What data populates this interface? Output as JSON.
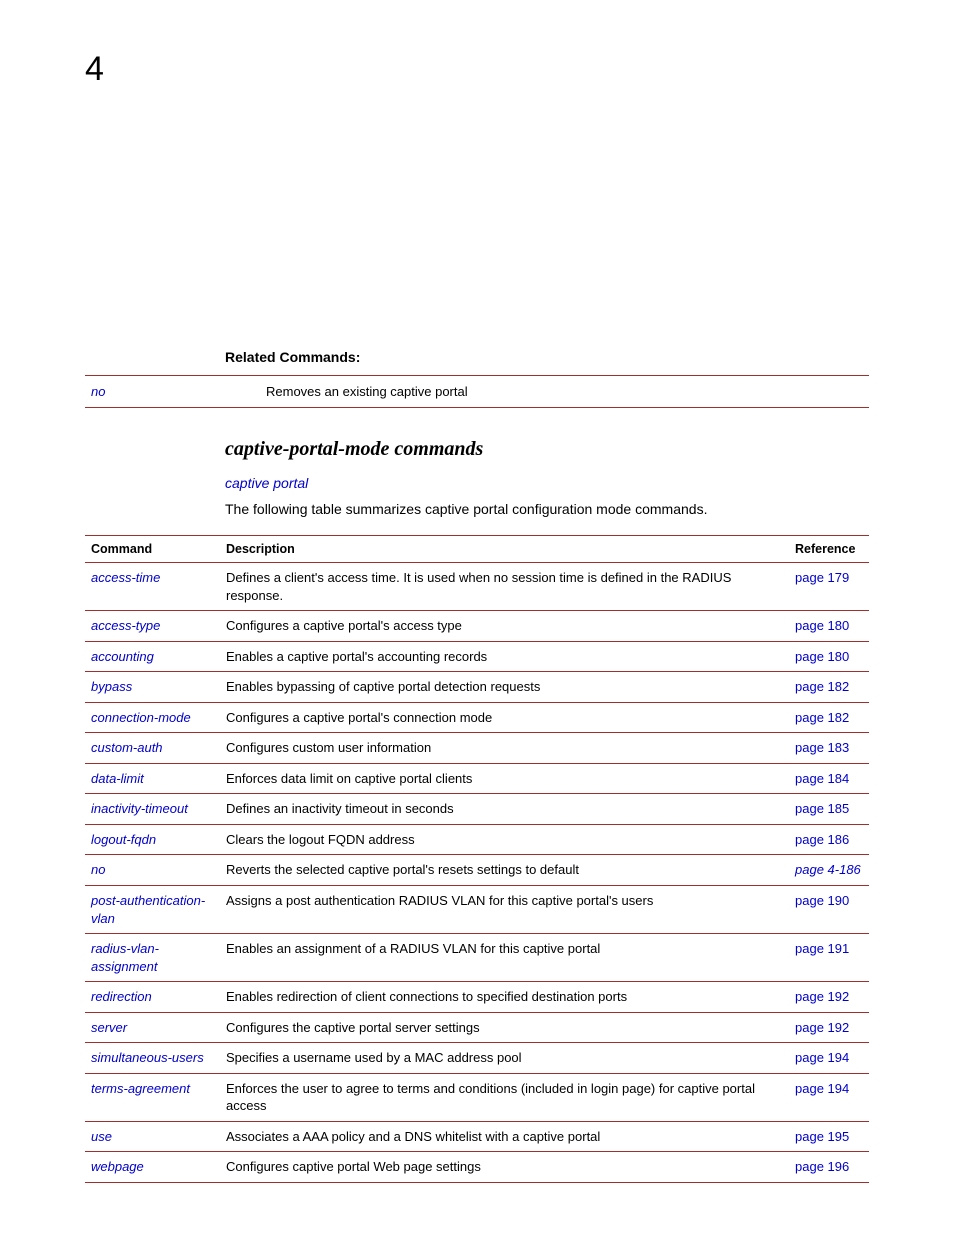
{
  "chapter": "4",
  "related": {
    "heading": "Related Commands:",
    "rows": [
      {
        "cmd": "no",
        "desc": "Removes an existing captive portal"
      }
    ]
  },
  "section": {
    "title": "captive-portal-mode commands",
    "sublink": "captive portal",
    "intro": "The following table summarizes captive portal configuration mode commands."
  },
  "cmdtable": {
    "headers": {
      "cmd": "Command",
      "desc": "Description",
      "ref": "Reference"
    },
    "rows": [
      {
        "cmd": "access-time",
        "desc": "Defines a client's access time. It is used when no session time is defined in the RADIUS response.",
        "ref": "page 179",
        "ref_italic": false
      },
      {
        "cmd": "access-type",
        "desc": "Configures a captive portal's access type",
        "ref": "page 180",
        "ref_italic": false
      },
      {
        "cmd": "accounting",
        "desc": "Enables a captive portal's accounting records",
        "ref": "page 180",
        "ref_italic": false
      },
      {
        "cmd": "bypass",
        "desc": "Enables bypassing of captive portal detection requests",
        "ref": "page 182",
        "ref_italic": false
      },
      {
        "cmd": "connection-mode",
        "desc": "Configures a captive portal's connection mode",
        "ref": "page 182",
        "ref_italic": false
      },
      {
        "cmd": "custom-auth",
        "desc": "Configures custom user information",
        "ref": "page 183",
        "ref_italic": false
      },
      {
        "cmd": "data-limit",
        "desc": "Enforces data limit on captive portal clients",
        "ref": "page 184",
        "ref_italic": false
      },
      {
        "cmd": "inactivity-timeout",
        "desc": "Defines an inactivity timeout in seconds",
        "ref": "page 185",
        "ref_italic": false
      },
      {
        "cmd": "logout-fqdn",
        "desc": "Clears the logout FQDN address",
        "ref": "page 186",
        "ref_italic": false
      },
      {
        "cmd": "no",
        "desc": "Reverts the selected captive portal's resets settings to default",
        "ref": "page 4-186",
        "ref_italic": true
      },
      {
        "cmd": "post-authentication-vlan",
        "desc": "Assigns a post authentication RADIUS VLAN for this captive portal's users",
        "ref": "page 190",
        "ref_italic": false
      },
      {
        "cmd": "radius-vlan-assignment",
        "desc": "Enables an assignment of a RADIUS VLAN for this captive portal",
        "ref": "page 191",
        "ref_italic": false
      },
      {
        "cmd": "redirection",
        "desc": "Enables redirection of client connections to specified destination ports",
        "ref": "page 192",
        "ref_italic": false
      },
      {
        "cmd": "server",
        "desc": "Configures the captive portal server settings",
        "ref": "page 192",
        "ref_italic": false
      },
      {
        "cmd": "simultaneous-users",
        "desc": "Specifies a username used by a MAC address pool",
        "ref": "page 194",
        "ref_italic": false
      },
      {
        "cmd": "terms-agreement",
        "desc": "Enforces the user to agree to terms and conditions (included in login page) for captive portal access",
        "ref": "page 194",
        "ref_italic": false
      },
      {
        "cmd": "use",
        "desc": "Associates a AAA policy and a DNS whitelist with a captive portal",
        "ref": "page 195",
        "ref_italic": false
      },
      {
        "cmd": "webpage",
        "desc": "Configures captive portal Web page settings",
        "ref": "page 196",
        "ref_italic": false
      }
    ]
  }
}
